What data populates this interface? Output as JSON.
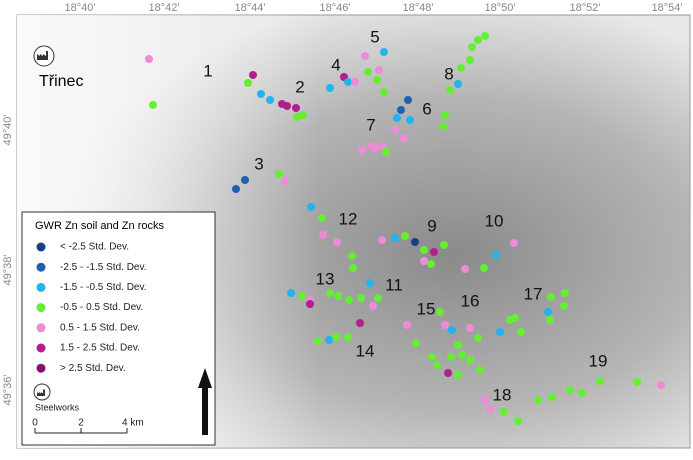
{
  "map": {
    "top_labels": [
      "18°40'",
      "18°42'",
      "18°44'",
      "18°46'",
      "18°48'",
      "18°50'",
      "18°52'",
      "18°54'"
    ],
    "left_labels": [
      "49°40'",
      "49°38'",
      "49°36'"
    ],
    "town": "Třinec",
    "site_labels": [
      "1",
      "2",
      "3",
      "4",
      "5",
      "6",
      "7",
      "8",
      "9",
      "10",
      "11",
      "12",
      "13",
      "14",
      "15",
      "16",
      "17",
      "18",
      "19"
    ],
    "legend": {
      "title": "GWR Zn soil and Zn rocks",
      "items": [
        {
          "label": "< -2.5 Std. Dev.",
          "color": "#1a3f86"
        },
        {
          "label": "-2.5 - -1.5 Std. Dev.",
          "color": "#2160b0"
        },
        {
          "label": "-1.5 - -0.5 Std. Dev.",
          "color": "#22b4ec"
        },
        {
          "label": "-0.5 - 0.5 Std. Dev.",
          "color": "#66ee33"
        },
        {
          "label": "0.5 - 1.5 Std. Dev.",
          "color": "#f08ad8"
        },
        {
          "label": "1.5 - 2.5 Std. Dev.",
          "color": "#b01f8c"
        },
        {
          "label": "> 2.5 Std. Dev.",
          "color": "#8a106e"
        }
      ],
      "steelworks": "Steelworks",
      "scale": [
        "0",
        "2",
        "4 km"
      ]
    }
  }
}
